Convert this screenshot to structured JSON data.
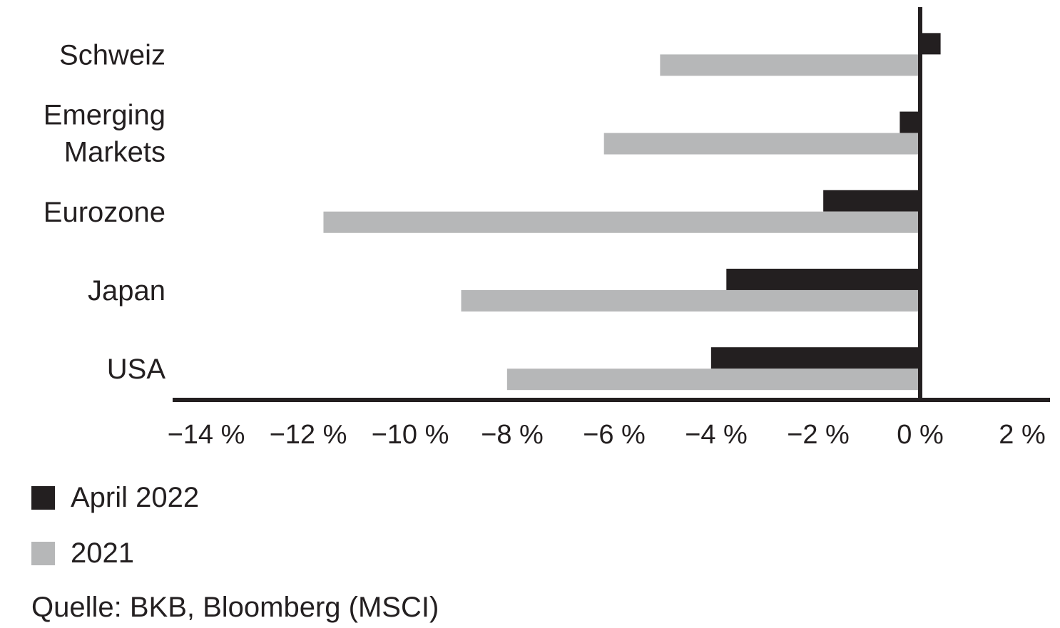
{
  "chart_data": {
    "type": "bar",
    "orientation": "horizontal",
    "categories": [
      "Schweiz",
      "Emerging Markets",
      "Eurozone",
      "Japan",
      "USA"
    ],
    "category_label_lines": [
      [
        "Schweiz"
      ],
      [
        "Emerging",
        "Markets"
      ],
      [
        "Eurozone"
      ],
      [
        "Japan"
      ],
      [
        "USA"
      ]
    ],
    "series": [
      {
        "name": "April 2022",
        "color": "#231f20",
        "values": [
          0.4,
          -0.4,
          -1.9,
          -3.8,
          -4.1
        ]
      },
      {
        "name": "2021",
        "color": "#b6b7b8",
        "values": [
          -5.1,
          -6.2,
          -11.7,
          -9.0,
          -8.1
        ]
      }
    ],
    "xlim": [
      -14,
      2
    ],
    "x_ticks": [
      -14,
      -12,
      -10,
      -8,
      -6,
      -4,
      -2,
      0,
      2
    ],
    "x_tick_labels": [
      "−14 %",
      "−12 %",
      "−10 %",
      "−8 %",
      "−6 %",
      "−4 %",
      "−2 %",
      "0 %",
      "2 %"
    ],
    "grid": false,
    "legend_position": "bottom-left"
  },
  "legend": {
    "items": [
      {
        "label": "April 2022",
        "color": "#231f20"
      },
      {
        "label": "2021",
        "color": "#b6b7b8"
      }
    ]
  },
  "source": "Quelle: BKB, Bloomberg (MSCI)"
}
